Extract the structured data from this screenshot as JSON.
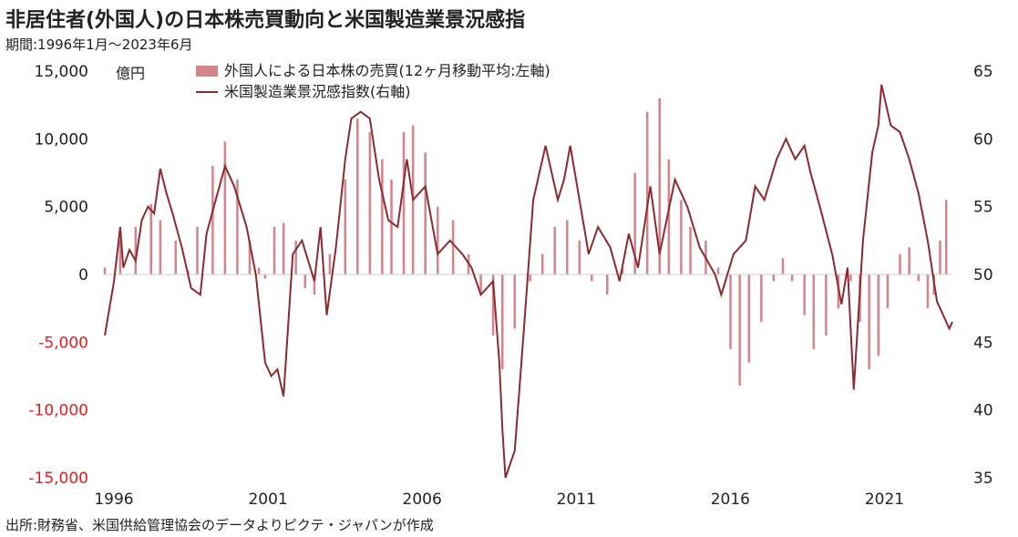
{
  "header": {
    "title": "非居住者(外国人)の日本株売買動向と米国製造業景況感指",
    "period": "期間:1996年1月〜2023年6月"
  },
  "footer": {
    "source": "出所:財務省、米国供給管理協会のデータよりピクテ・ジャパンが作成"
  },
  "colors": {
    "bar": "#d4858c",
    "line": "#8b2a30",
    "negative_tick": "#e02020",
    "text": "#222222"
  },
  "chart_data": {
    "type": "bar+line",
    "left_unit": "億円",
    "legend": {
      "bar_label": "外国人による日本株の売買(12ヶ月移動平均:左軸)",
      "line_label": "米国製造業景況感指数(右軸)"
    },
    "left_axis": {
      "min": -15000,
      "max": 15000,
      "ticks": [
        "15,000",
        "10,000",
        "5,000",
        "0",
        "-5,000",
        "-10,000",
        "-15,000"
      ],
      "tick_values": [
        15000,
        10000,
        5000,
        0,
        -5000,
        -10000,
        -15000
      ]
    },
    "right_axis": {
      "min": 35,
      "max": 65,
      "ticks": [
        "65",
        "60",
        "55",
        "50",
        "45",
        "40",
        "35"
      ],
      "tick_values": [
        65,
        60,
        55,
        50,
        45,
        40,
        35
      ]
    },
    "x_axis": {
      "start": 1996.0,
      "end": 2023.5,
      "ticks": [
        "1996",
        "2001",
        "2006",
        "2011",
        "2016",
        "2021"
      ],
      "tick_values": [
        1996,
        2001,
        2006,
        2011,
        2016,
        2021
      ]
    },
    "bar_series": {
      "name": "外国人による日本株の売買(12ヶ月移動平均:左軸)",
      "points": [
        [
          1996.0,
          500
        ],
        [
          1996.5,
          2500
        ],
        [
          1997.0,
          3500
        ],
        [
          1997.5,
          5200
        ],
        [
          1997.8,
          4000
        ],
        [
          1998.3,
          2500
        ],
        [
          1998.7,
          300
        ],
        [
          1999.0,
          3500
        ],
        [
          1999.5,
          8000
        ],
        [
          1999.9,
          9800
        ],
        [
          2000.3,
          7000
        ],
        [
          2000.7,
          2500
        ],
        [
          2001.0,
          500
        ],
        [
          2001.2,
          -300
        ],
        [
          2001.5,
          3500
        ],
        [
          2001.8,
          3800
        ],
        [
          2002.2,
          2500
        ],
        [
          2002.5,
          -1000
        ],
        [
          2002.8,
          -1500
        ],
        [
          2003.3,
          1500
        ],
        [
          2003.8,
          7000
        ],
        [
          2004.2,
          11500
        ],
        [
          2004.6,
          10500
        ],
        [
          2005.0,
          8500
        ],
        [
          2005.3,
          7000
        ],
        [
          2005.7,
          10500
        ],
        [
          2006.0,
          11000
        ],
        [
          2006.4,
          9000
        ],
        [
          2006.8,
          5000
        ],
        [
          2007.3,
          4000
        ],
        [
          2007.8,
          1500
        ],
        [
          2008.2,
          -1500
        ],
        [
          2008.6,
          -4500
        ],
        [
          2008.9,
          -7000
        ],
        [
          2009.3,
          -4000
        ],
        [
          2009.8,
          -500
        ],
        [
          2010.2,
          1500
        ],
        [
          2010.6,
          3500
        ],
        [
          2011.0,
          4000
        ],
        [
          2011.4,
          2500
        ],
        [
          2011.8,
          -500
        ],
        [
          2012.3,
          -1500
        ],
        [
          2012.8,
          500
        ],
        [
          2013.2,
          7500
        ],
        [
          2013.6,
          12000
        ],
        [
          2014.0,
          13000
        ],
        [
          2014.3,
          8500
        ],
        [
          2014.7,
          5500
        ],
        [
          2015.0,
          3500
        ],
        [
          2015.5,
          2500
        ],
        [
          2015.9,
          500
        ],
        [
          2016.3,
          -5500
        ],
        [
          2016.6,
          -8200
        ],
        [
          2016.9,
          -6500
        ],
        [
          2017.3,
          -3500
        ],
        [
          2017.7,
          -500
        ],
        [
          2018.0,
          1200
        ],
        [
          2018.3,
          -500
        ],
        [
          2018.7,
          -3000
        ],
        [
          2019.0,
          -5500
        ],
        [
          2019.4,
          -4500
        ],
        [
          2019.8,
          -2500
        ],
        [
          2020.2,
          -500
        ],
        [
          2020.5,
          -3500
        ],
        [
          2020.8,
          -7000
        ],
        [
          2021.1,
          -6000
        ],
        [
          2021.4,
          -2500
        ],
        [
          2021.8,
          1500
        ],
        [
          2022.1,
          2000
        ],
        [
          2022.4,
          -500
        ],
        [
          2022.7,
          -2500
        ],
        [
          2022.9,
          -1500
        ],
        [
          2023.1,
          2500
        ],
        [
          2023.3,
          5500
        ]
      ]
    },
    "line_series": {
      "name": "米国製造業景況感指数(右軸)",
      "points": [
        [
          1996.0,
          45.5
        ],
        [
          1996.3,
          49.5
        ],
        [
          1996.5,
          53.5
        ],
        [
          1996.6,
          50.5
        ],
        [
          1996.8,
          51.8
        ],
        [
          1997.0,
          51.0
        ],
        [
          1997.2,
          54.0
        ],
        [
          1997.4,
          55.0
        ],
        [
          1997.6,
          54.5
        ],
        [
          1997.8,
          57.8
        ],
        [
          1998.0,
          56.0
        ],
        [
          1998.2,
          54.5
        ],
        [
          1998.5,
          52.0
        ],
        [
          1998.8,
          49.0
        ],
        [
          1999.1,
          48.5
        ],
        [
          1999.3,
          53.0
        ],
        [
          1999.6,
          55.5
        ],
        [
          1999.9,
          58.0
        ],
        [
          2000.2,
          56.5
        ],
        [
          2000.6,
          53.5
        ],
        [
          2000.9,
          50.0
        ],
        [
          2001.2,
          43.5
        ],
        [
          2001.4,
          42.5
        ],
        [
          2001.6,
          43.0
        ],
        [
          2001.8,
          41.0
        ],
        [
          2002.1,
          51.5
        ],
        [
          2002.4,
          52.5
        ],
        [
          2002.8,
          49.5
        ],
        [
          2003.0,
          53.5
        ],
        [
          2003.2,
          47.0
        ],
        [
          2003.5,
          52.0
        ],
        [
          2003.8,
          58.5
        ],
        [
          2004.0,
          61.5
        ],
        [
          2004.3,
          62.0
        ],
        [
          2004.6,
          61.5
        ],
        [
          2004.9,
          57.0
        ],
        [
          2005.2,
          54.0
        ],
        [
          2005.5,
          53.5
        ],
        [
          2005.8,
          58.5
        ],
        [
          2006.0,
          55.5
        ],
        [
          2006.4,
          56.5
        ],
        [
          2006.8,
          51.5
        ],
        [
          2007.2,
          52.5
        ],
        [
          2007.6,
          51.5
        ],
        [
          2007.9,
          50.5
        ],
        [
          2008.2,
          48.5
        ],
        [
          2008.6,
          49.5
        ],
        [
          2008.8,
          43.5
        ],
        [
          2008.9,
          38.5
        ],
        [
          2009.0,
          35.0
        ],
        [
          2009.3,
          37.0
        ],
        [
          2009.6,
          46.0
        ],
        [
          2009.9,
          55.5
        ],
        [
          2010.3,
          59.5
        ],
        [
          2010.7,
          55.5
        ],
        [
          2010.9,
          57.0
        ],
        [
          2011.1,
          59.5
        ],
        [
          2011.4,
          55.5
        ],
        [
          2011.7,
          51.5
        ],
        [
          2012.0,
          53.5
        ],
        [
          2012.4,
          52.0
        ],
        [
          2012.7,
          49.5
        ],
        [
          2013.0,
          53.0
        ],
        [
          2013.3,
          50.5
        ],
        [
          2013.7,
          56.5
        ],
        [
          2014.0,
          51.5
        ],
        [
          2014.5,
          57.0
        ],
        [
          2014.9,
          55.0
        ],
        [
          2015.3,
          52.0
        ],
        [
          2015.8,
          50.0
        ],
        [
          2016.0,
          48.5
        ],
        [
          2016.4,
          51.5
        ],
        [
          2016.8,
          52.5
        ],
        [
          2017.1,
          56.5
        ],
        [
          2017.4,
          55.5
        ],
        [
          2017.8,
          58.5
        ],
        [
          2018.1,
          60.0
        ],
        [
          2018.4,
          58.5
        ],
        [
          2018.7,
          59.5
        ],
        [
          2018.9,
          57.5
        ],
        [
          2019.2,
          55.0
        ],
        [
          2019.6,
          51.5
        ],
        [
          2019.9,
          47.8
        ],
        [
          2020.1,
          50.5
        ],
        [
          2020.3,
          41.5
        ],
        [
          2020.6,
          52.5
        ],
        [
          2020.9,
          59.0
        ],
        [
          2021.1,
          61.0
        ],
        [
          2021.2,
          64.0
        ],
        [
          2021.5,
          61.0
        ],
        [
          2021.8,
          60.5
        ],
        [
          2022.1,
          58.5
        ],
        [
          2022.4,
          56.0
        ],
        [
          2022.7,
          52.5
        ],
        [
          2023.0,
          48.0
        ],
        [
          2023.2,
          47.0
        ],
        [
          2023.4,
          46.0
        ],
        [
          2023.5,
          46.5
        ]
      ]
    }
  }
}
